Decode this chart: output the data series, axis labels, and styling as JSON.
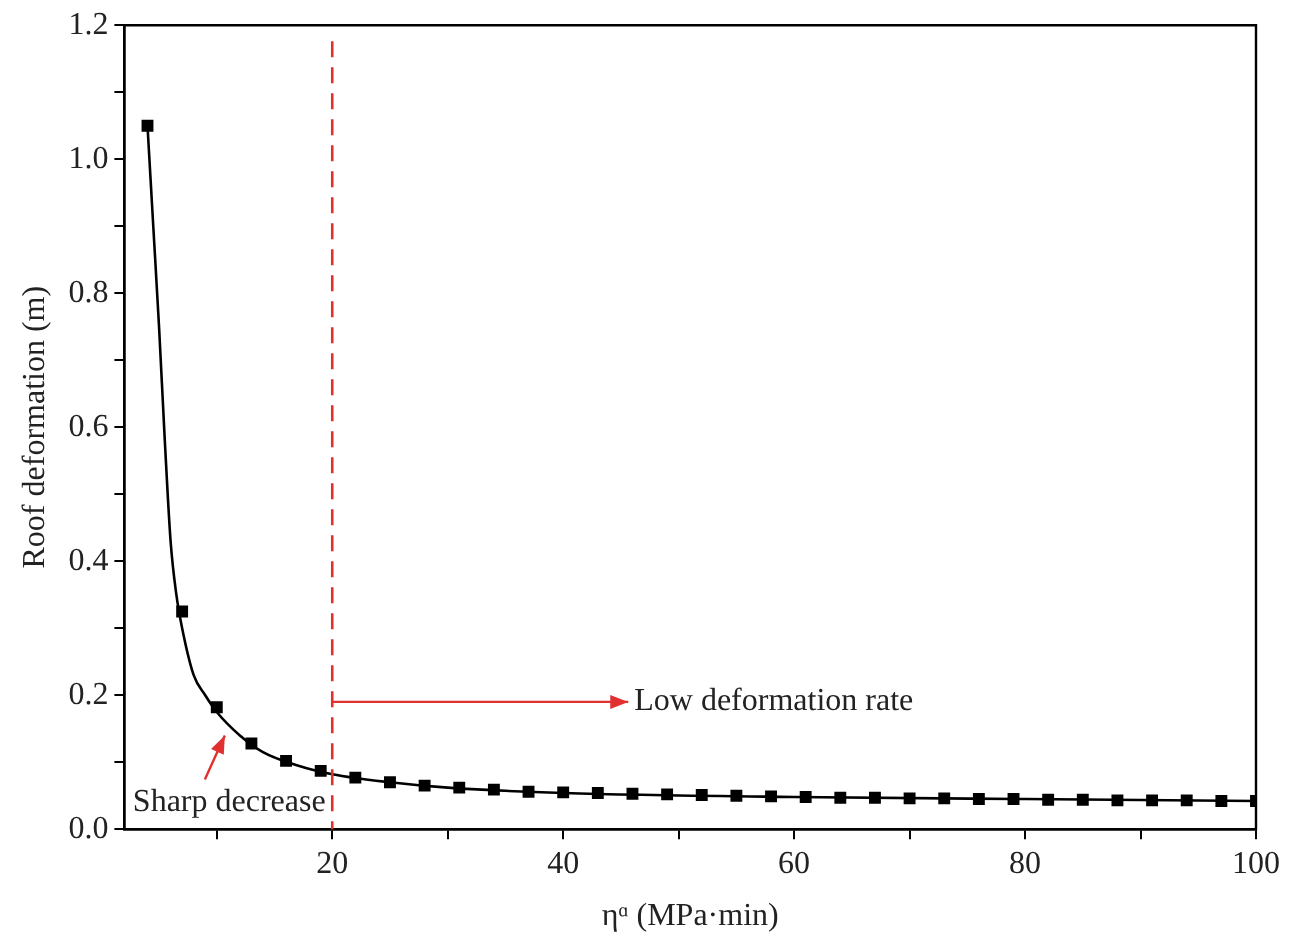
{
  "chart_data": {
    "type": "scatter",
    "xlabel": "ηᵅ (MPa·min)",
    "ylabel": "Roof deformation (m)",
    "xlim": [
      2,
      100
    ],
    "ylim": [
      0,
      1.2
    ],
    "xticks": [
      {
        "value": 10,
        "label": null
      },
      20,
      {
        "value": 30,
        "label": null
      },
      40,
      {
        "value": 50,
        "label": null
      },
      60,
      {
        "value": 70,
        "label": null
      },
      80,
      {
        "value": 90,
        "label": null
      },
      100
    ],
    "yticks": [
      {
        "value": 0,
        "label": "0.0"
      },
      {
        "value": 0.1,
        "label": null
      },
      0.2,
      {
        "value": 0.3,
        "label": null
      },
      0.4,
      {
        "value": 0.5,
        "label": null
      },
      0.6,
      {
        "value": 0.7,
        "label": null
      },
      0.8,
      {
        "value": 0.9,
        "label": null
      },
      {
        "value": 1,
        "label": "1.0"
      },
      {
        "value": 1.1,
        "label": null
      },
      1.2
    ],
    "grid": false,
    "legend": false,
    "series": [
      {
        "type": "scatter",
        "marker": "square",
        "color": "#000000",
        "x": [
          4,
          7,
          10,
          13,
          16,
          19,
          22,
          25,
          28,
          31,
          34,
          37,
          40,
          43,
          46,
          49,
          52,
          55,
          58,
          61,
          64,
          67,
          70,
          73,
          76,
          79,
          82,
          85,
          88,
          91,
          94,
          97,
          100
        ],
        "values": [
          1.05,
          0.325,
          0.182,
          0.128,
          0.102,
          0.087,
          0.077,
          0.07,
          0.065,
          0.062,
          0.059,
          0.056,
          0.055,
          0.054,
          0.053,
          0.052,
          0.051,
          0.05,
          0.049,
          0.048,
          0.047,
          0.047,
          0.046,
          0.046,
          0.045,
          0.045,
          0.044,
          0.044,
          0.043,
          0.043,
          0.043,
          0.042,
          0.042
        ]
      },
      {
        "type": "line",
        "marker": "none",
        "line_style": "solid",
        "color": "#000000",
        "x": [
          4,
          4.5,
          5,
          5.5,
          6,
          6.5,
          7,
          8,
          9,
          10,
          12,
          14,
          17,
          20,
          25,
          30,
          40,
          60,
          80,
          100
        ],
        "values": [
          1.05,
          0.9,
          0.75,
          0.58,
          0.43,
          0.35,
          0.3,
          0.23,
          0.2,
          0.175,
          0.14,
          0.115,
          0.095,
          0.082,
          0.07,
          0.062,
          0.054,
          0.048,
          0.045,
          0.042
        ]
      }
    ],
    "ref_lines": [
      {
        "axis": "x",
        "value": 20,
        "color": "#e03030",
        "line_style": "dashed"
      }
    ],
    "annotations": [
      {
        "text": "Sharp decrease",
        "x": 10.7,
        "y": 0.14
      },
      {
        "text": "Low deformation rate",
        "x": 20,
        "y": 0.19
      }
    ]
  }
}
